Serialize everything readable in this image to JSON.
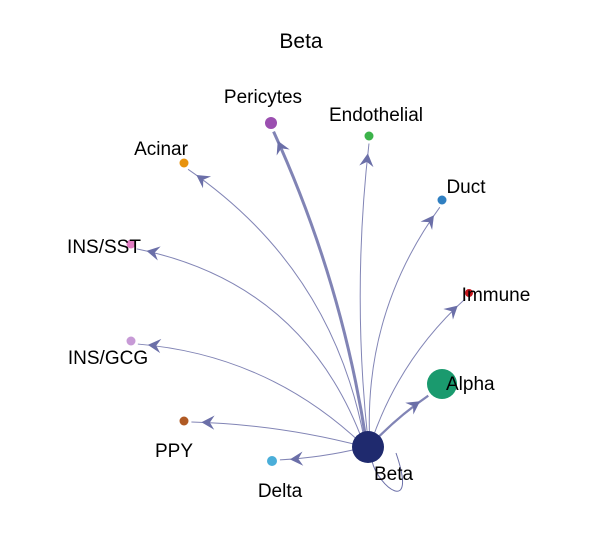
{
  "title": "Beta",
  "source": {
    "id": "beta",
    "label": "Beta",
    "color": "#1f2a6e"
  },
  "edge_color": "#6b6fa8",
  "nodes": [
    {
      "id": "pericytes",
      "label": "Pericytes",
      "color": "#9b4fb0"
    },
    {
      "id": "endothelial",
      "label": "Endothelial",
      "color": "#3cb34a"
    },
    {
      "id": "acinar",
      "label": "Acinar",
      "color": "#e8930f"
    },
    {
      "id": "duct",
      "label": "Duct",
      "color": "#2f7fc1"
    },
    {
      "id": "ins-sst",
      "label": "INS/SST",
      "color": "#e07bc2"
    },
    {
      "id": "immune",
      "label": "Immune",
      "color": "#c7161c"
    },
    {
      "id": "ins-gcg",
      "label": "INS/GCG",
      "color": "#c79ad6"
    },
    {
      "id": "alpha",
      "label": "Alpha",
      "color": "#1a9a6e"
    },
    {
      "id": "ppy",
      "label": "PPY",
      "color": "#b05a24"
    },
    {
      "id": "delta",
      "label": "Delta",
      "color": "#4aaed9"
    }
  ],
  "edges": [
    {
      "from": "beta",
      "to": "pericytes"
    },
    {
      "from": "beta",
      "to": "endothelial"
    },
    {
      "from": "beta",
      "to": "acinar"
    },
    {
      "from": "beta",
      "to": "duct"
    },
    {
      "from": "beta",
      "to": "ins-sst"
    },
    {
      "from": "beta",
      "to": "immune"
    },
    {
      "from": "beta",
      "to": "ins-gcg"
    },
    {
      "from": "beta",
      "to": "alpha"
    },
    {
      "from": "beta",
      "to": "ppy"
    },
    {
      "from": "beta",
      "to": "delta"
    },
    {
      "from": "beta",
      "to": "beta"
    }
  ]
}
